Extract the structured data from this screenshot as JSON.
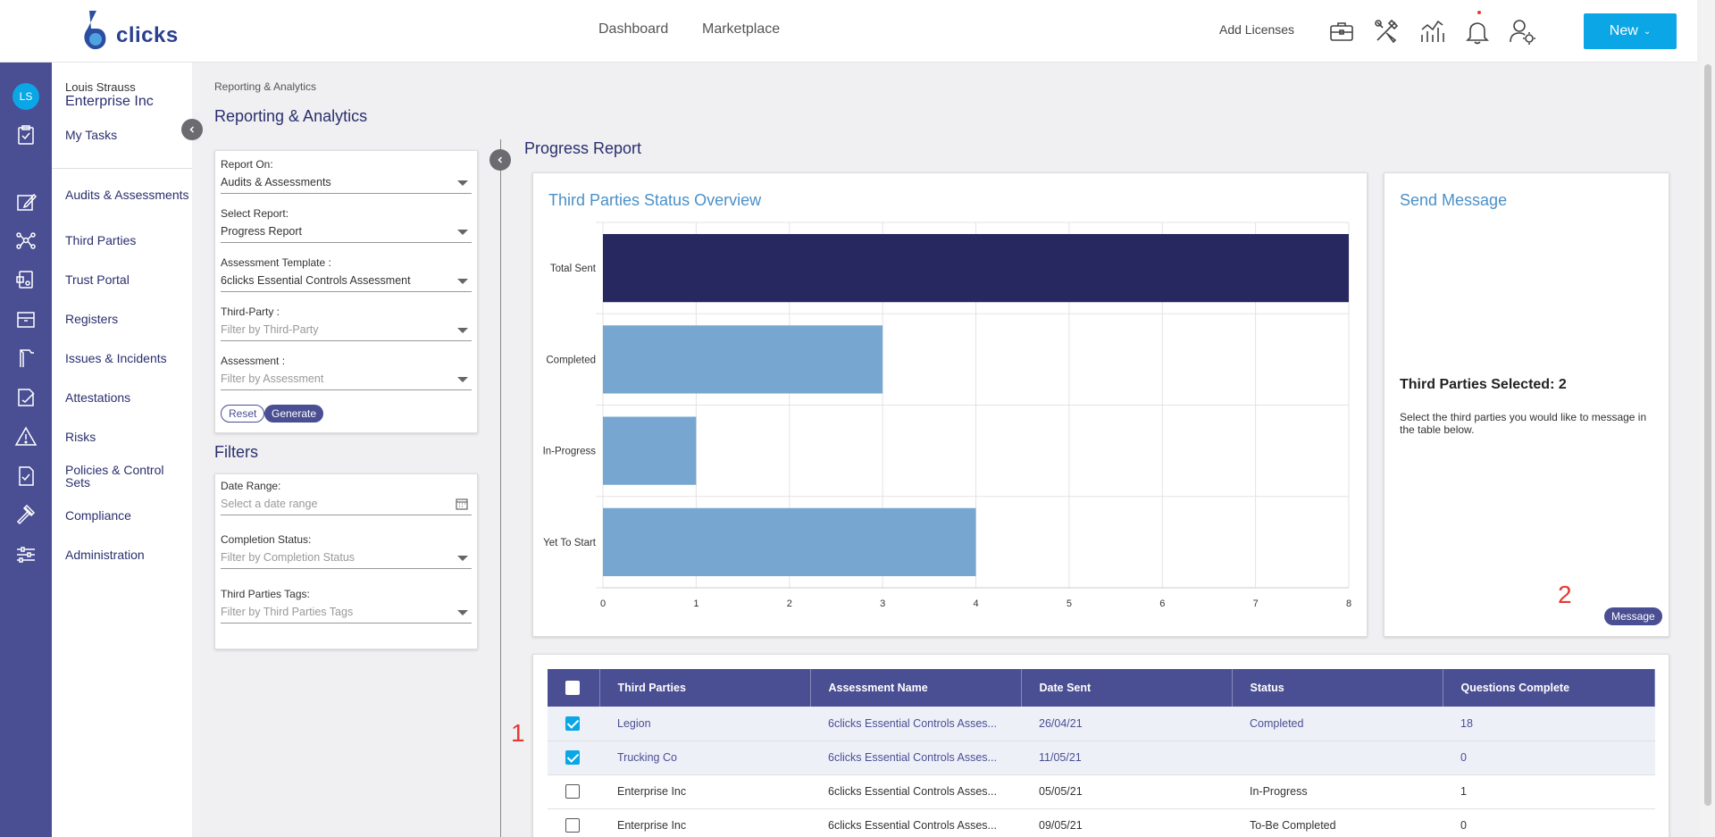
{
  "header": {
    "logo_text": "clicks",
    "nav": [
      "Dashboard",
      "Marketplace"
    ],
    "add_licenses": "Add Licenses",
    "new_button": "New",
    "icons": [
      "briefcase-icon",
      "tools-icon",
      "analytics-icon",
      "bell-icon",
      "user-settings-icon"
    ]
  },
  "user": {
    "initials": "LS",
    "name": "Louis Strauss",
    "org": "Enterprise Inc"
  },
  "sidebar": {
    "items": [
      {
        "label": "My Tasks",
        "icon": "clipboard-check-icon"
      },
      {
        "label": "Audits & Assessments",
        "icon": "edit-icon"
      },
      {
        "label": "Third Parties",
        "icon": "network-icon"
      },
      {
        "label": "Trust Portal",
        "icon": "trust-portal-icon"
      },
      {
        "label": "Registers",
        "icon": "box-icon"
      },
      {
        "label": "Issues & Incidents",
        "icon": "flag-icon"
      },
      {
        "label": "Attestations",
        "icon": "attest-icon"
      },
      {
        "label": "Risks",
        "icon": "warning-icon"
      },
      {
        "label": "Policies & Control Sets",
        "icon": "policy-icon"
      },
      {
        "label": "Compliance",
        "icon": "gavel-icon"
      },
      {
        "label": "Administration",
        "icon": "sliders-icon"
      }
    ]
  },
  "breadcrumb": "Reporting & Analytics",
  "page_title": "Reporting & Analytics",
  "report_form": {
    "report_on": {
      "label": "Report On:",
      "value": "Audits & Assessments"
    },
    "select_report": {
      "label": "Select Report:",
      "value": "Progress Report"
    },
    "assessment_template": {
      "label": "Assessment Template :",
      "value": "6clicks Essential Controls Assessment"
    },
    "third_party": {
      "label": "Third-Party :",
      "placeholder": "Filter by Third-Party"
    },
    "assessment": {
      "label": "Assessment :",
      "placeholder": "Filter by Assessment"
    },
    "reset_label": "Reset",
    "generate_label": "Generate"
  },
  "filters": {
    "title": "Filters",
    "date_range": {
      "label": "Date Range:",
      "placeholder": "Select a date range"
    },
    "completion_status": {
      "label": "Completion Status:",
      "placeholder": "Filter by Completion Status"
    },
    "tags": {
      "label": "Third Parties Tags:",
      "placeholder": "Filter by Third Parties Tags"
    }
  },
  "report_title": "Progress Report",
  "chart_data": {
    "type": "bar",
    "orientation": "horizontal",
    "title": "Third Parties Status Overview",
    "categories": [
      "Total Sent",
      "Completed",
      "In-Progress",
      "Yet To Start"
    ],
    "values": [
      8,
      3,
      1,
      4
    ],
    "xlim": [
      0,
      8
    ],
    "xticks": [
      0,
      1,
      2,
      3,
      4,
      5,
      6,
      7,
      8
    ],
    "colors": [
      "#272860",
      "#77a7d0",
      "#77a7d0",
      "#77a7d0"
    ],
    "grid": true
  },
  "send_message": {
    "title": "Send Message",
    "selected_title": "Third Parties Selected: 2",
    "description": "Select the third parties you would like to message in the table below.",
    "button_label": "Message"
  },
  "annotations": [
    "1",
    "2"
  ],
  "table": {
    "columns": [
      "Third Parties",
      "Assessment Name",
      "Date Sent",
      "Status",
      "Questions Complete"
    ],
    "rows": [
      {
        "checked": true,
        "third_party": "Legion",
        "assessment": "6clicks Essential Controls Asses...",
        "date": "26/04/21",
        "status": "Completed",
        "questions": "18"
      },
      {
        "checked": true,
        "third_party": "Trucking Co",
        "assessment": "6clicks Essential Controls Asses...",
        "date": "11/05/21",
        "status": "",
        "questions": "0"
      },
      {
        "checked": false,
        "third_party": "Enterprise Inc",
        "assessment": "6clicks Essential Controls Asses...",
        "date": "05/05/21",
        "status": "In-Progress",
        "questions": "1"
      },
      {
        "checked": false,
        "third_party": "Enterprise Inc",
        "assessment": "6clicks Essential Controls Asses...",
        "date": "09/05/21",
        "status": "To-Be Completed",
        "questions": "0"
      }
    ]
  }
}
